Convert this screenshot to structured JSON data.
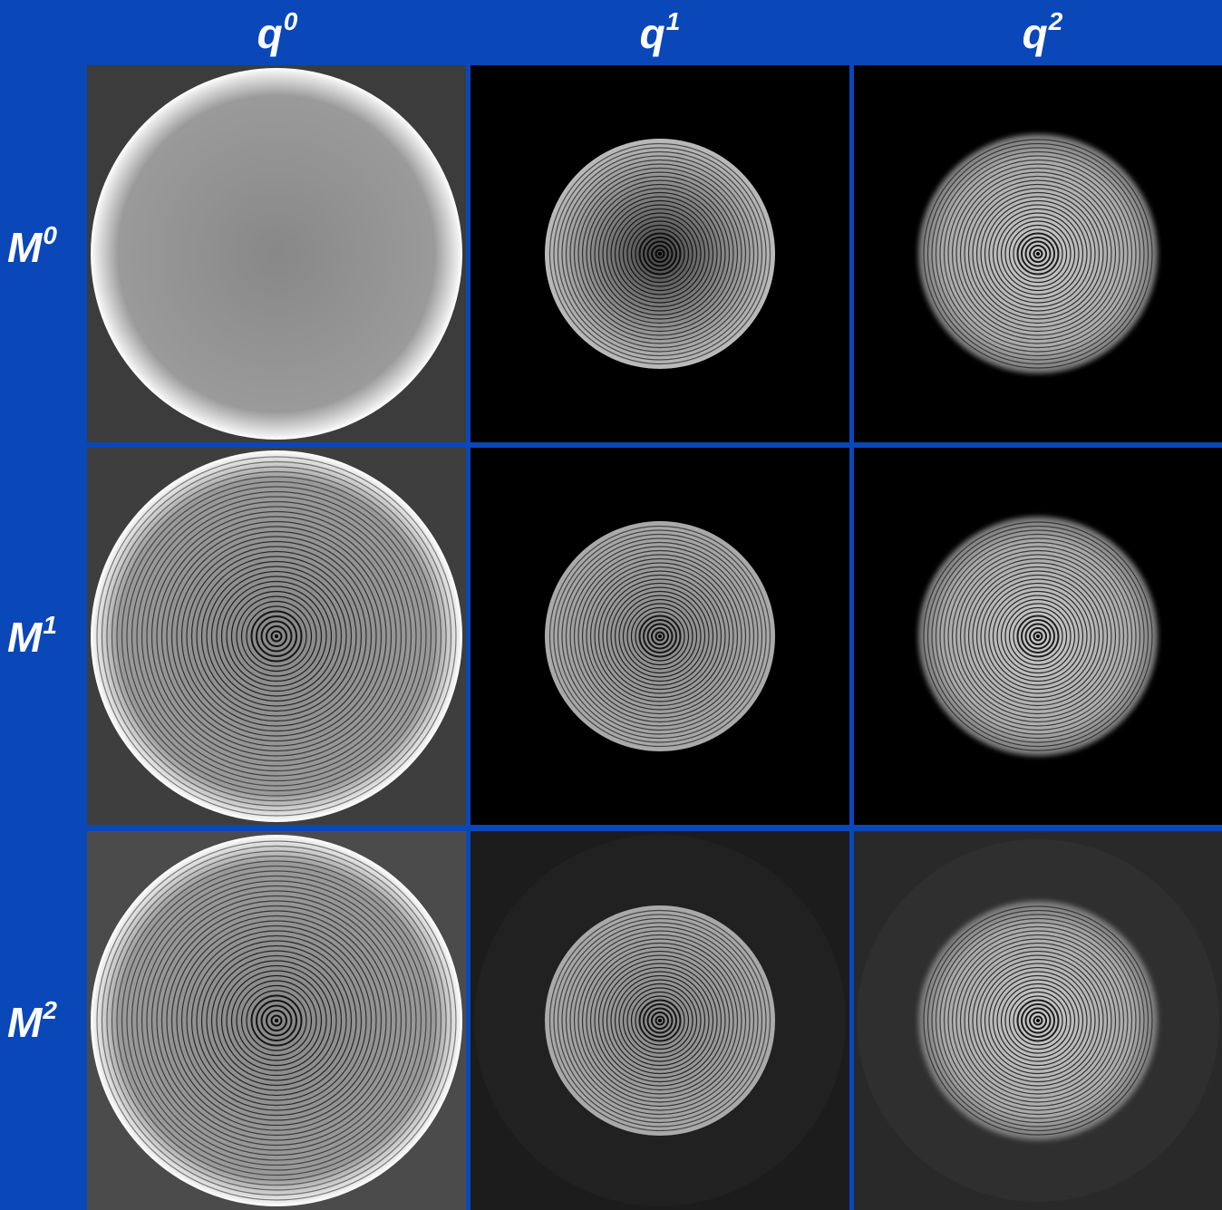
{
  "columns": [
    {
      "base": "q",
      "sup": "0"
    },
    {
      "base": "q",
      "sup": "1"
    },
    {
      "base": "q",
      "sup": "2"
    }
  ],
  "rows": [
    {
      "base": "M",
      "sup": "0"
    },
    {
      "base": "M",
      "sup": "1"
    },
    {
      "base": "M",
      "sup": "2"
    }
  ]
}
